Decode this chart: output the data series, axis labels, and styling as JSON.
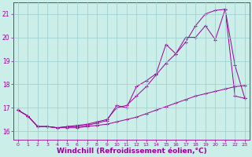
{
  "background_color": "#cceee8",
  "grid_color": "#99cccc",
  "line_color": "#990099",
  "xlabel": "Windchill (Refroidissement éolien,°C)",
  "xlabel_fontsize": 6.5,
  "ylabel_ticks": [
    16,
    17,
    18,
    19,
    20,
    21
  ],
  "xtick_max": 23,
  "ylim": [
    15.65,
    21.5
  ],
  "xlim": [
    -0.5,
    23.5
  ],
  "line1_x": [
    0,
    1,
    2,
    3,
    4,
    5,
    6,
    7,
    8,
    9,
    10,
    11,
    12,
    13,
    14,
    15,
    16,
    17,
    18,
    19,
    20,
    21,
    22,
    23
  ],
  "line1_y": [
    16.9,
    16.65,
    16.2,
    16.2,
    16.15,
    16.15,
    16.15,
    16.2,
    16.25,
    16.3,
    16.4,
    16.5,
    16.6,
    16.75,
    16.9,
    17.05,
    17.2,
    17.35,
    17.5,
    17.6,
    17.7,
    17.8,
    17.9,
    17.95
  ],
  "line2_x": [
    0,
    1,
    2,
    3,
    4,
    5,
    6,
    7,
    8,
    9,
    10,
    11,
    12,
    13,
    14,
    15,
    16,
    17,
    18,
    19,
    20,
    21,
    22,
    23
  ],
  "line2_y": [
    16.9,
    16.65,
    16.2,
    16.2,
    16.15,
    16.2,
    16.2,
    16.25,
    16.35,
    16.45,
    17.1,
    17.0,
    17.9,
    18.15,
    18.45,
    19.7,
    19.3,
    20.0,
    20.0,
    20.5,
    19.9,
    21.2,
    18.8,
    17.4
  ],
  "line3_x": [
    0,
    1,
    2,
    3,
    4,
    5,
    6,
    7,
    8,
    9,
    10,
    11,
    12,
    13,
    14,
    15,
    16,
    17,
    18,
    19,
    20,
    21,
    22,
    23
  ],
  "line3_y": [
    16.9,
    16.65,
    16.2,
    16.2,
    16.15,
    16.2,
    16.25,
    16.3,
    16.4,
    16.5,
    17.0,
    17.1,
    17.5,
    17.9,
    18.4,
    18.9,
    19.3,
    19.8,
    20.5,
    21.0,
    21.15,
    21.2,
    17.5,
    17.4
  ]
}
